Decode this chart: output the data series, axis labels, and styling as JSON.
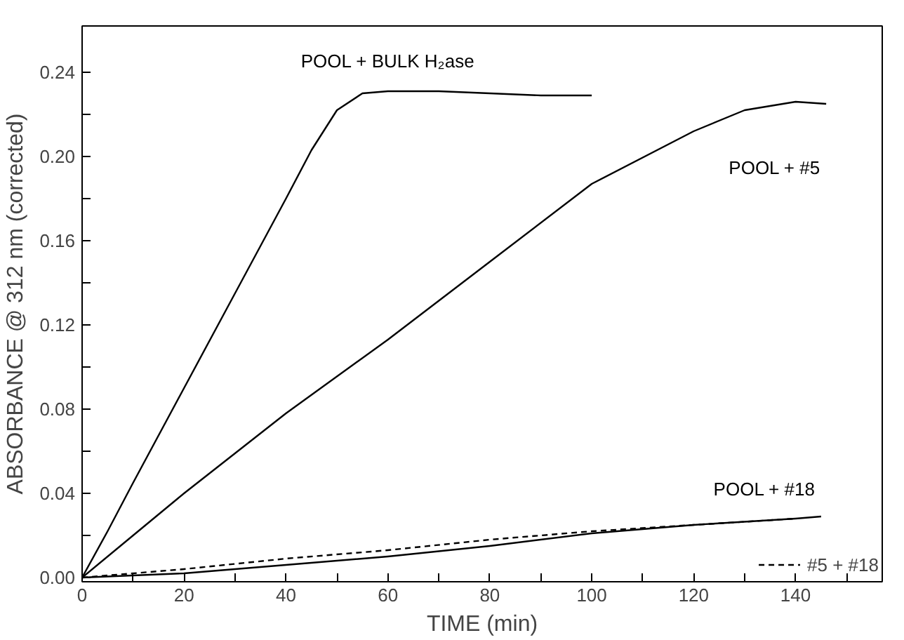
{
  "chart_data": {
    "type": "line",
    "xlabel": "TIME (min)",
    "ylabel": "ABSORBANCE @ 312 nm (corrected)",
    "xlim": [
      0,
      157
    ],
    "ylim": [
      -0.002,
      0.262
    ],
    "xticks": [
      0,
      {
        "value": 10,
        "label": null
      },
      20,
      {
        "value": 30,
        "label": null
      },
      40,
      {
        "value": 50,
        "label": null
      },
      60,
      {
        "value": 70,
        "label": null
      },
      80,
      {
        "value": 90,
        "label": null
      },
      100,
      {
        "value": 110,
        "label": null
      },
      120,
      {
        "value": 130,
        "label": null
      },
      140,
      {
        "value": 150,
        "label": null
      }
    ],
    "yticks": [
      {
        "value": 0,
        "label": "0.00"
      },
      {
        "value": 0.02,
        "label": null
      },
      0.04,
      {
        "value": 0.06,
        "label": null
      },
      0.08,
      {
        "value": 0.1,
        "label": null
      },
      0.12,
      {
        "value": 0.14,
        "label": null
      },
      0.16,
      {
        "value": 0.18,
        "label": null
      },
      {
        "value": 0.2,
        "label": "0.20"
      },
      {
        "value": 0.22,
        "label": null
      },
      0.24
    ],
    "grid": false,
    "legend": "bottom right",
    "series": [
      {
        "name": "POOL + BULK H₂ase",
        "color": "#000000",
        "line_style": "solid",
        "x": [
          0,
          5,
          10,
          20,
          30,
          40,
          45,
          50,
          55,
          60,
          70,
          80,
          90,
          100
        ],
        "values": [
          0,
          0.022,
          0.045,
          0.09,
          0.135,
          0.18,
          0.203,
          0.222,
          0.23,
          0.231,
          0.231,
          0.23,
          0.229,
          0.229
        ]
      },
      {
        "name": "POOL + #5",
        "color": "#000000",
        "line_style": "solid",
        "x": [
          0,
          10,
          20,
          40,
          60,
          80,
          100,
          120,
          130,
          140,
          146
        ],
        "values": [
          0,
          0.02,
          0.04,
          0.078,
          0.113,
          0.15,
          0.187,
          0.212,
          0.222,
          0.226,
          0.225
        ]
      },
      {
        "name": "POOL + #18",
        "color": "#000000",
        "line_style": "solid",
        "x": [
          0,
          20,
          40,
          60,
          80,
          100,
          120,
          140,
          145
        ],
        "values": [
          0,
          0.002,
          0.006,
          0.01,
          0.015,
          0.021,
          0.025,
          0.028,
          0.029
        ]
      },
      {
        "name": "#5 + #18",
        "color": "#000000",
        "line_style": "dashed",
        "x": [
          0,
          20,
          40,
          60,
          80,
          100,
          120,
          140
        ],
        "values": [
          0,
          0.004,
          0.009,
          0.013,
          0.018,
          0.022,
          0.025,
          0.028
        ]
      }
    ]
  }
}
